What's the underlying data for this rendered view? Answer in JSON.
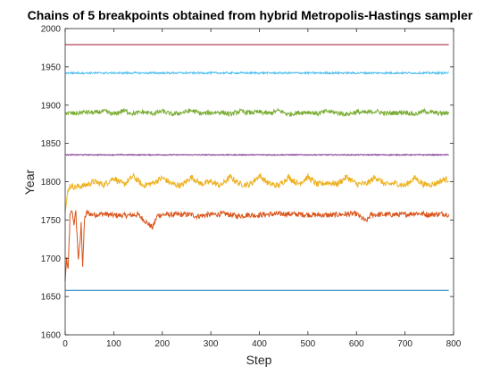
{
  "chart_data": {
    "type": "line",
    "title": "Chains of 5 breakpoints obtained from hybrid Metropolis-Hastings sampler",
    "xlabel": "Step",
    "ylabel": "Year",
    "xlim": [
      0,
      800
    ],
    "ylim": [
      1600,
      2000
    ],
    "xticks": [
      "0",
      "100",
      "200",
      "300",
      "400",
      "500",
      "600",
      "700",
      "800"
    ],
    "yticks": [
      "1600",
      "1650",
      "1700",
      "1750",
      "1800",
      "1850",
      "1900",
      "1950",
      "2000"
    ],
    "grid": false,
    "legend": "none",
    "n_steps": 790,
    "series": [
      {
        "color": "#0072BD",
        "x": [
          0,
          790
        ],
        "values": [
          1658,
          1658
        ]
      },
      {
        "color": "#D95319",
        "x": [
          0,
          3,
          6,
          10,
          14,
          18,
          22,
          27,
          30,
          33,
          36,
          40,
          45,
          50,
          60,
          80,
          100,
          130,
          150,
          180,
          190,
          200,
          230,
          260,
          270,
          300,
          330,
          355,
          380,
          390,
          410,
          450,
          500,
          550,
          560,
          600,
          620,
          630,
          650,
          700,
          720,
          750,
          780,
          790
        ],
        "values": [
          1670,
          1700,
          1683,
          1755,
          1762,
          1745,
          1760,
          1700,
          1715,
          1745,
          1690,
          1752,
          1760,
          1758,
          1757,
          1758,
          1756,
          1756,
          1757,
          1740,
          1756,
          1757,
          1757,
          1757,
          1755,
          1757,
          1758,
          1755,
          1757,
          1756,
          1757,
          1758,
          1757,
          1756,
          1757,
          1758,
          1748,
          1757,
          1757,
          1757,
          1759,
          1757,
          1758,
          1757
        ]
      },
      {
        "color": "#EDB120",
        "x": [
          0,
          5,
          10,
          20,
          40,
          60,
          80,
          100,
          120,
          140,
          160,
          180,
          200,
          220,
          240,
          260,
          280,
          300,
          320,
          340,
          360,
          380,
          400,
          420,
          440,
          460,
          480,
          500,
          520,
          540,
          560,
          580,
          600,
          620,
          640,
          660,
          680,
          700,
          720,
          740,
          760,
          780,
          790
        ],
        "values": [
          1760,
          1785,
          1795,
          1793,
          1795,
          1800,
          1796,
          1805,
          1796,
          1807,
          1795,
          1798,
          1805,
          1797,
          1795,
          1806,
          1797,
          1800,
          1795,
          1806,
          1797,
          1796,
          1808,
          1797,
          1795,
          1806,
          1797,
          1806,
          1796,
          1799,
          1797,
          1806,
          1797,
          1797,
          1806,
          1796,
          1798,
          1795,
          1805,
          1796,
          1797,
          1803,
          1803
        ]
      },
      {
        "color": "#7E2F8E",
        "x": [
          0,
          790
        ],
        "values": [
          1835,
          1835
        ]
      },
      {
        "color": "#77AC30",
        "x": [
          0,
          20,
          40,
          60,
          80,
          100,
          120,
          140,
          160,
          180,
          200,
          220,
          240,
          260,
          280,
          300,
          320,
          340,
          360,
          380,
          400,
          420,
          440,
          460,
          480,
          500,
          520,
          540,
          560,
          580,
          600,
          620,
          640,
          660,
          680,
          700,
          720,
          740,
          760,
          780,
          790
        ],
        "values": [
          1890,
          1889,
          1891,
          1890,
          1892,
          1888,
          1893,
          1889,
          1891,
          1889,
          1892,
          1888,
          1890,
          1893,
          1889,
          1890,
          1891,
          1888,
          1892,
          1890,
          1891,
          1889,
          1893,
          1888,
          1890,
          1891,
          1889,
          1892,
          1890,
          1888,
          1891,
          1890,
          1892,
          1889,
          1890,
          1891,
          1888,
          1892,
          1890,
          1889,
          1890
        ]
      },
      {
        "color": "#4DBEEE",
        "x": [
          0,
          790
        ],
        "values": [
          1942,
          1942
        ]
      },
      {
        "color": "#A2142F",
        "x": [
          0,
          790
        ],
        "values": [
          1979,
          1979
        ]
      }
    ]
  }
}
